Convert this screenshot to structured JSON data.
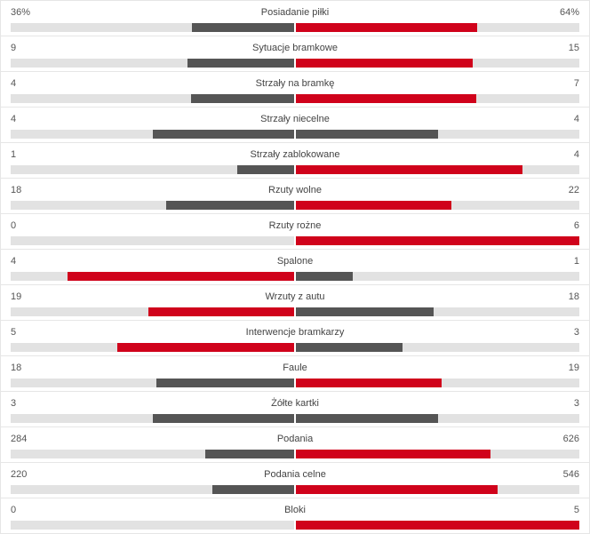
{
  "colors": {
    "winner": "#d0021b",
    "other": "#555555",
    "track": "#e2e2e2"
  },
  "stats": [
    {
      "label": "Posiadanie piłki",
      "home": "36%",
      "away": "64%",
      "home_value": 36,
      "away_value": 64
    },
    {
      "label": "Sytuacje bramkowe",
      "home": "9",
      "away": "15",
      "home_value": 9,
      "away_value": 15
    },
    {
      "label": "Strzały na bramkę",
      "home": "4",
      "away": "7",
      "home_value": 4,
      "away_value": 7
    },
    {
      "label": "Strzały niecelne",
      "home": "4",
      "away": "4",
      "home_value": 4,
      "away_value": 4
    },
    {
      "label": "Strzały zablokowane",
      "home": "1",
      "away": "4",
      "home_value": 1,
      "away_value": 4
    },
    {
      "label": "Rzuty wolne",
      "home": "18",
      "away": "22",
      "home_value": 18,
      "away_value": 22
    },
    {
      "label": "Rzuty rożne",
      "home": "0",
      "away": "6",
      "home_value": 0,
      "away_value": 6
    },
    {
      "label": "Spalone",
      "home": "4",
      "away": "1",
      "home_value": 4,
      "away_value": 1
    },
    {
      "label": "Wrzuty z autu",
      "home": "19",
      "away": "18",
      "home_value": 19,
      "away_value": 18
    },
    {
      "label": "Interwencje bramkarzy",
      "home": "5",
      "away": "3",
      "home_value": 5,
      "away_value": 3
    },
    {
      "label": "Faule",
      "home": "18",
      "away": "19",
      "home_value": 18,
      "away_value": 19
    },
    {
      "label": "Żółte kartki",
      "home": "3",
      "away": "3",
      "home_value": 3,
      "away_value": 3
    },
    {
      "label": "Podania",
      "home": "284",
      "away": "626",
      "home_value": 284,
      "away_value": 626
    },
    {
      "label": "Podania celne",
      "home": "220",
      "away": "546",
      "home_value": 220,
      "away_value": 546
    },
    {
      "label": "Bloki",
      "home": "0",
      "away": "5",
      "home_value": 0,
      "away_value": 5
    }
  ]
}
